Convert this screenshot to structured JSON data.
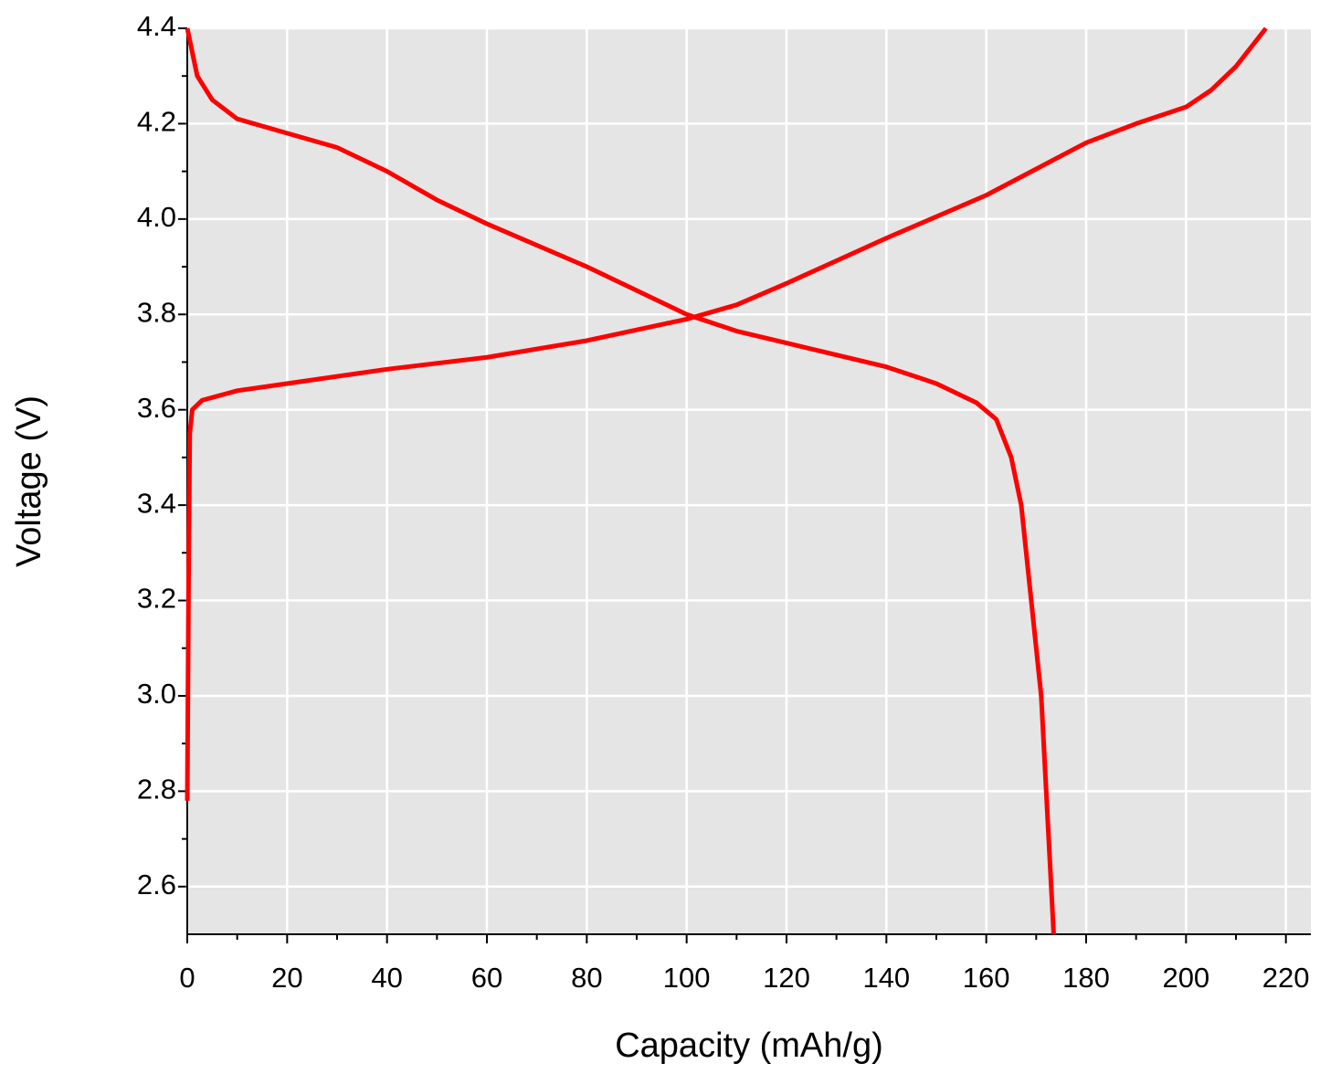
{
  "chart_data": {
    "type": "line",
    "xlabel": "Capacity (mAh/g)",
    "ylabel": "Voltage (V)",
    "xlim": [
      0,
      225
    ],
    "ylim": [
      2.5,
      4.4
    ],
    "xticks": [
      0,
      20,
      40,
      60,
      80,
      100,
      120,
      140,
      160,
      180,
      200,
      220
    ],
    "yticks": [
      2.6,
      2.8,
      {
        "value": 3.0,
        "label": "3.0"
      },
      3.2,
      3.4,
      3.6,
      3.8,
      {
        "value": 4.0,
        "label": "4.0"
      },
      4.2,
      4.4
    ],
    "grid": true,
    "background": "#e5e5e5",
    "series": [
      {
        "color": "#ff0000",
        "x": [
          0,
          0.3,
          0.5,
          1,
          3,
          10,
          20,
          40,
          60,
          80,
          100,
          110,
          120,
          140,
          160,
          180,
          190,
          200,
          205,
          210,
          216
        ],
        "values": [
          2.78,
          3.3,
          3.55,
          3.6,
          3.62,
          3.64,
          3.655,
          3.685,
          3.71,
          3.745,
          3.79,
          3.82,
          3.865,
          3.96,
          4.05,
          4.16,
          4.2,
          4.235,
          4.27,
          4.32,
          4.4
        ]
      },
      {
        "color": "#ff0000",
        "x": [
          0,
          2,
          5,
          10,
          20,
          30,
          40,
          50,
          60,
          80,
          100,
          110,
          120,
          140,
          150,
          158,
          162,
          165,
          167,
          169,
          171,
          172,
          173,
          173.5
        ],
        "values": [
          4.4,
          4.3,
          4.25,
          4.21,
          4.18,
          4.15,
          4.1,
          4.04,
          3.99,
          3.9,
          3.8,
          3.765,
          3.74,
          3.69,
          3.655,
          3.615,
          3.58,
          3.5,
          3.4,
          3.2,
          3.0,
          2.8,
          2.6,
          2.5
        ]
      }
    ]
  }
}
